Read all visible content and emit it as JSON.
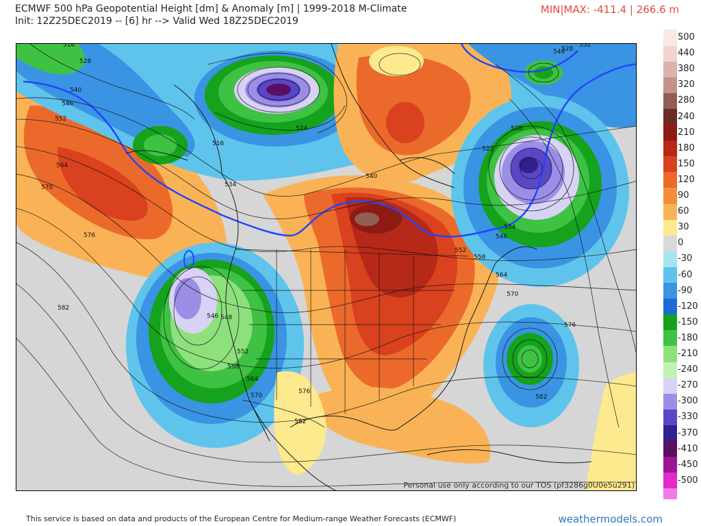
{
  "header": {
    "title": "ECMWF 500 hPa Geopotential Height [dm] & Anomaly [m] | 1999-2018 M-Climate",
    "init": "Init: 12Z25DEC2019 -- [6] hr --> Valid Wed 18Z25DEC2019",
    "minmax": "MIN|MAX: -411.4 | 266.6 m"
  },
  "map": {
    "watermark": "Personal use only according to our TOS (pf3286g0U0e5u291)",
    "contour_labels": [
      "516",
      "522",
      "528",
      "534",
      "540",
      "546",
      "552",
      "558",
      "564",
      "570",
      "576",
      "582"
    ],
    "labels": [
      {
        "text": "516"
      },
      {
        "text": "528"
      },
      {
        "text": "540"
      },
      {
        "text": "546"
      },
      {
        "text": "552"
      },
      {
        "text": "564"
      },
      {
        "text": "570"
      },
      {
        "text": "576"
      },
      {
        "text": "582"
      },
      {
        "text": "516"
      },
      {
        "text": "534"
      },
      {
        "text": "524"
      },
      {
        "text": "528"
      },
      {
        "text": "522"
      },
      {
        "text": "540"
      },
      {
        "text": "534"
      },
      {
        "text": "546"
      },
      {
        "text": "552"
      },
      {
        "text": "558"
      },
      {
        "text": "564"
      },
      {
        "text": "570"
      },
      {
        "text": "576"
      },
      {
        "text": "582"
      },
      {
        "text": "546"
      },
      {
        "text": "548"
      },
      {
        "text": "552"
      },
      {
        "text": "558"
      },
      {
        "text": "564"
      },
      {
        "text": "570"
      },
      {
        "text": "576"
      },
      {
        "text": "582"
      },
      {
        "text": "528"
      },
      {
        "text": "546"
      },
      {
        "text": "552"
      }
    ]
  },
  "legend": {
    "entries": [
      {
        "label": "500",
        "color": "#fbe9e6"
      },
      {
        "label": "440",
        "color": "#f1d3cf"
      },
      {
        "label": "380",
        "color": "#dcb3ac"
      },
      {
        "label": "320",
        "color": "#c59287"
      },
      {
        "label": "280",
        "color": "#8f5e54"
      },
      {
        "label": "240",
        "color": "#6b2b25"
      },
      {
        "label": "210",
        "color": "#8e1a14"
      },
      {
        "label": "180",
        "color": "#b62817"
      },
      {
        "label": "150",
        "color": "#d9411f"
      },
      {
        "label": "120",
        "color": "#eb6a2b"
      },
      {
        "label": "90",
        "color": "#f58e3a"
      },
      {
        "label": "60",
        "color": "#f9b356"
      },
      {
        "label": "30",
        "color": "#fde98e"
      },
      {
        "label": "0",
        "color": "#d9d9d9"
      },
      {
        "label": "-30",
        "color": "#a7e4f3"
      },
      {
        "label": "-60",
        "color": "#5fc4ec"
      },
      {
        "label": "-90",
        "color": "#3a94e3"
      },
      {
        "label": "-120",
        "color": "#1f6ad4"
      },
      {
        "label": "-150",
        "color": "#15a21c"
      },
      {
        "label": "-180",
        "color": "#3fc244"
      },
      {
        "label": "-210",
        "color": "#8ee07d"
      },
      {
        "label": "-240",
        "color": "#c2f2b3"
      },
      {
        "label": "-270",
        "color": "#d8d2f5"
      },
      {
        "label": "-300",
        "color": "#9b8ee6"
      },
      {
        "label": "-330",
        "color": "#5a47c7"
      },
      {
        "label": "-370",
        "color": "#33208f"
      },
      {
        "label": "-410",
        "color": "#5a0f60"
      },
      {
        "label": "-450",
        "color": "#9c1694"
      },
      {
        "label": "-500",
        "color": "#e229c9"
      }
    ],
    "bottom_color": "#f27ae8"
  },
  "footer": {
    "credit": "This service is based on data and products of the European Centre for Medium-range Weather Forecasts (ECMWF)",
    "brand": "weathermodels.com"
  }
}
